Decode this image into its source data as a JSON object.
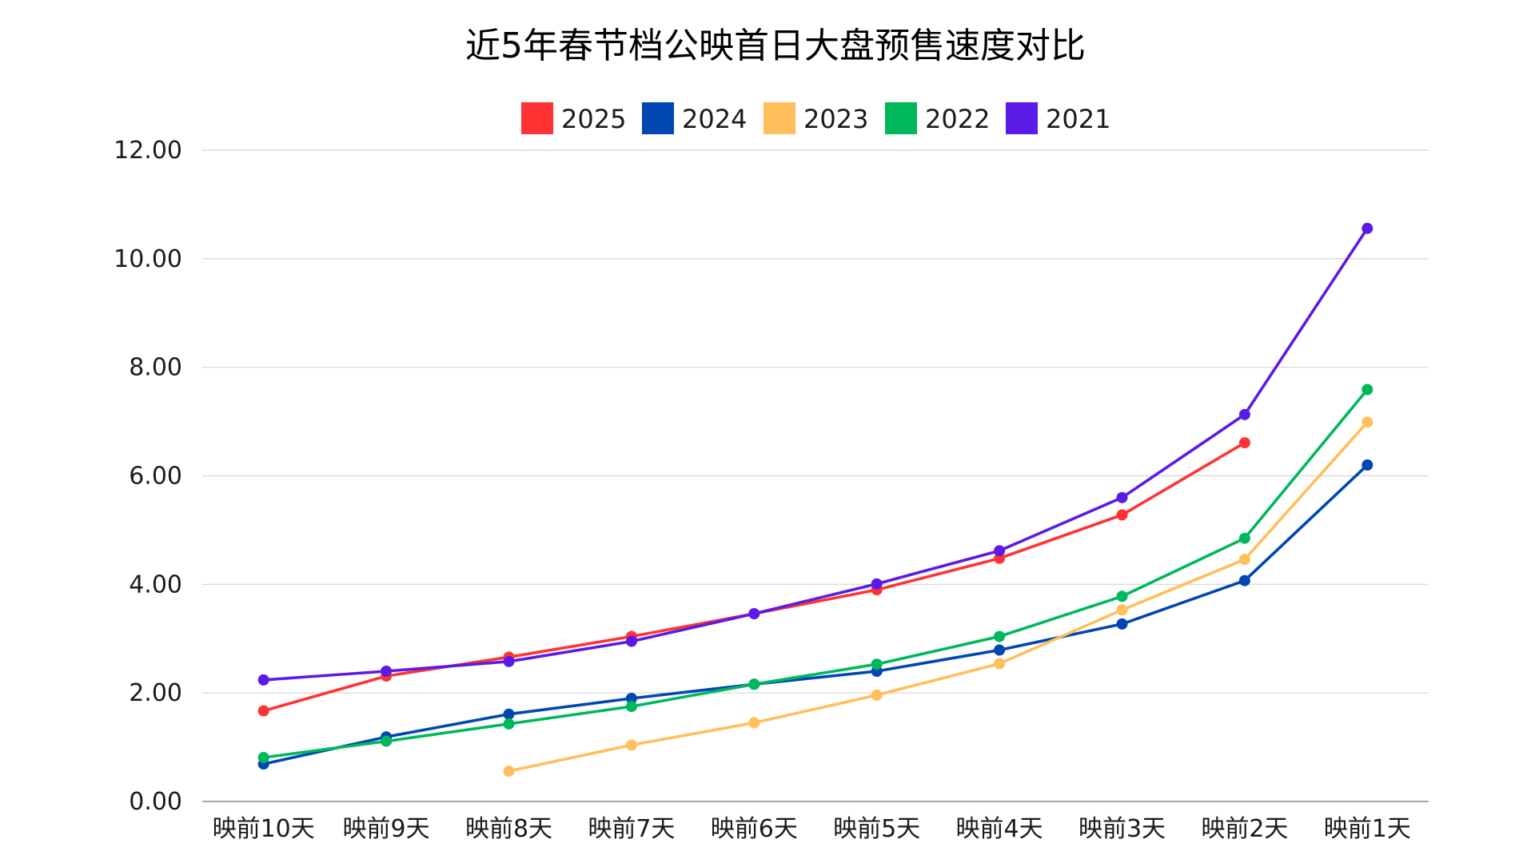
{
  "chart_data": {
    "type": "line",
    "title": "近5年春节档公映首日大盘预售速度对比",
    "xlabel": "",
    "ylabel": "",
    "categories": [
      "映前10天",
      "映前9天",
      "映前8天",
      "映前7天",
      "映前6天",
      "映前5天",
      "映前4天",
      "映前3天",
      "映前2天",
      "映前1天"
    ],
    "ylim": [
      0,
      12
    ],
    "yticks": [
      0,
      2,
      4,
      6,
      8,
      10,
      12
    ],
    "ytick_labels": [
      "0.00",
      "2.00",
      "4.00",
      "6.00",
      "8.00",
      "10.00",
      "12.00"
    ],
    "grid": true,
    "legend_position": "top-center",
    "series": [
      {
        "name": "2025",
        "color": "#ff3333",
        "values": [
          1.67,
          2.31,
          2.66,
          3.04,
          3.46,
          3.9,
          4.48,
          5.28,
          6.61,
          null
        ]
      },
      {
        "name": "2024",
        "color": "#0047b3",
        "values": [
          0.69,
          1.19,
          1.61,
          1.9,
          2.16,
          2.4,
          2.79,
          3.27,
          4.07,
          6.2
        ]
      },
      {
        "name": "2023",
        "color": "#ffbf5c",
        "values": [
          null,
          null,
          0.56,
          1.04,
          1.45,
          1.96,
          2.54,
          3.53,
          4.46,
          6.99
        ]
      },
      {
        "name": "2022",
        "color": "#00b85c",
        "values": [
          0.81,
          1.11,
          1.43,
          1.75,
          2.16,
          2.53,
          3.04,
          3.78,
          4.85,
          7.59
        ]
      },
      {
        "name": "2021",
        "color": "#5c1ae6",
        "values": [
          2.24,
          2.4,
          2.58,
          2.95,
          3.46,
          4.01,
          4.62,
          5.6,
          7.13,
          10.56
        ]
      }
    ]
  }
}
